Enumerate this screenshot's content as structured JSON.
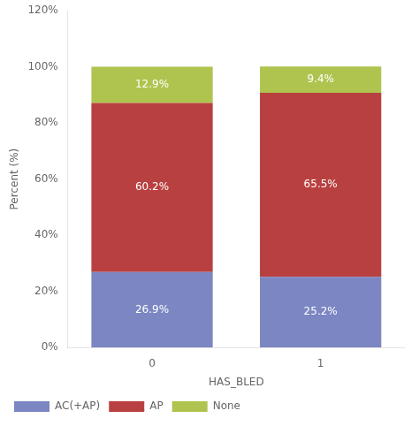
{
  "chart_data": {
    "type": "bar",
    "stacked": true,
    "categories": [
      "0",
      "1"
    ],
    "series": [
      {
        "name": "AC(+AP)",
        "color": "#7b86c2",
        "values": [
          26.9,
          25.2
        ],
        "value_labels": [
          "26.9%",
          "25.2%"
        ]
      },
      {
        "name": "AP",
        "color": "#b94040",
        "values": [
          60.2,
          65.5
        ],
        "value_labels": [
          "60.2%",
          "65.5%"
        ]
      },
      {
        "name": "None",
        "color": "#aec44f",
        "values": [
          12.9,
          9.4
        ],
        "value_labels": [
          "12.9%",
          "9.4%"
        ]
      }
    ],
    "xlabel": "HAS_BLED",
    "ylabel": "Percent (%)",
    "ylim": [
      0,
      120
    ],
    "yticks": [
      {
        "value": 0,
        "label": "0%"
      },
      {
        "value": 20,
        "label": "20%"
      },
      {
        "value": 40,
        "label": "40%"
      },
      {
        "value": 60,
        "label": "60%"
      },
      {
        "value": 80,
        "label": "80%"
      },
      {
        "value": 100,
        "label": "100%"
      },
      {
        "value": 120,
        "label": "120%"
      }
    ],
    "grid": false,
    "legend": "bottom left",
    "data_labels": true
  }
}
